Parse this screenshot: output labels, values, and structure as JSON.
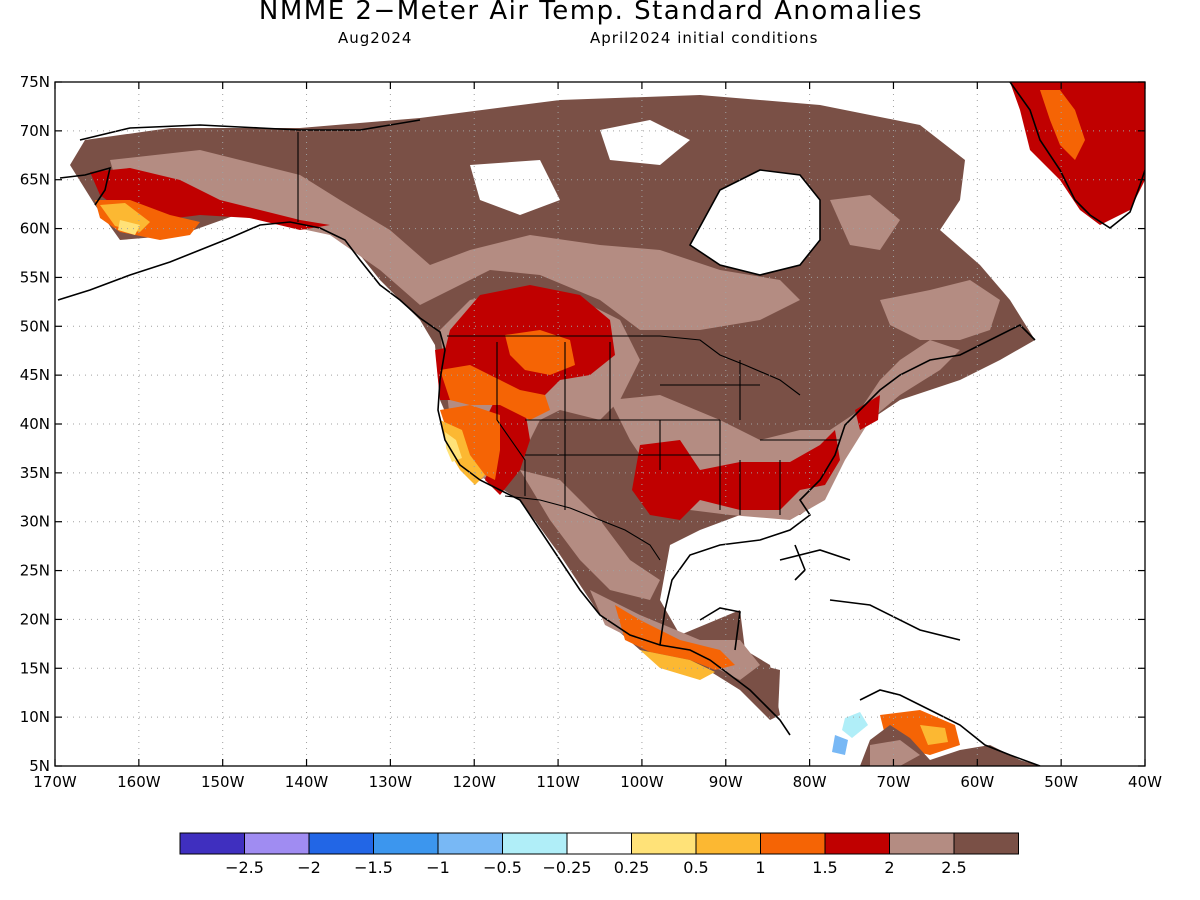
{
  "title": "NMME 2−Meter Air Temp. Standard Anomalies",
  "subtitle_left": "Aug2024",
  "subtitle_right": "April2024 initial conditions",
  "map": {
    "lat_labels": [
      "75N",
      "70N",
      "65N",
      "60N",
      "55N",
      "50N",
      "45N",
      "40N",
      "35N",
      "30N",
      "25N",
      "20N",
      "15N",
      "10N",
      "5N"
    ],
    "lon_labels": [
      "170W",
      "160W",
      "150W",
      "140W",
      "130W",
      "120W",
      "110W",
      "100W",
      "90W",
      "80W",
      "70W",
      "60W",
      "50W",
      "40W"
    ]
  },
  "colorbar": {
    "colors": [
      "#3f2fbf",
      "#a08cf2",
      "#2266e6",
      "#3c96ee",
      "#78b8f5",
      "#b0eef8",
      "#ffffff",
      "#ffe278",
      "#fcb832",
      "#f56405",
      "#c00000",
      "#b48c82",
      "#7a5046"
    ],
    "labels": [
      "−2.5",
      "−2",
      "−1.5",
      "−1",
      "−0.5",
      "−0.25",
      "0.25",
      "0.5",
      "1",
      "1.5",
      "2",
      "2.5"
    ]
  }
}
